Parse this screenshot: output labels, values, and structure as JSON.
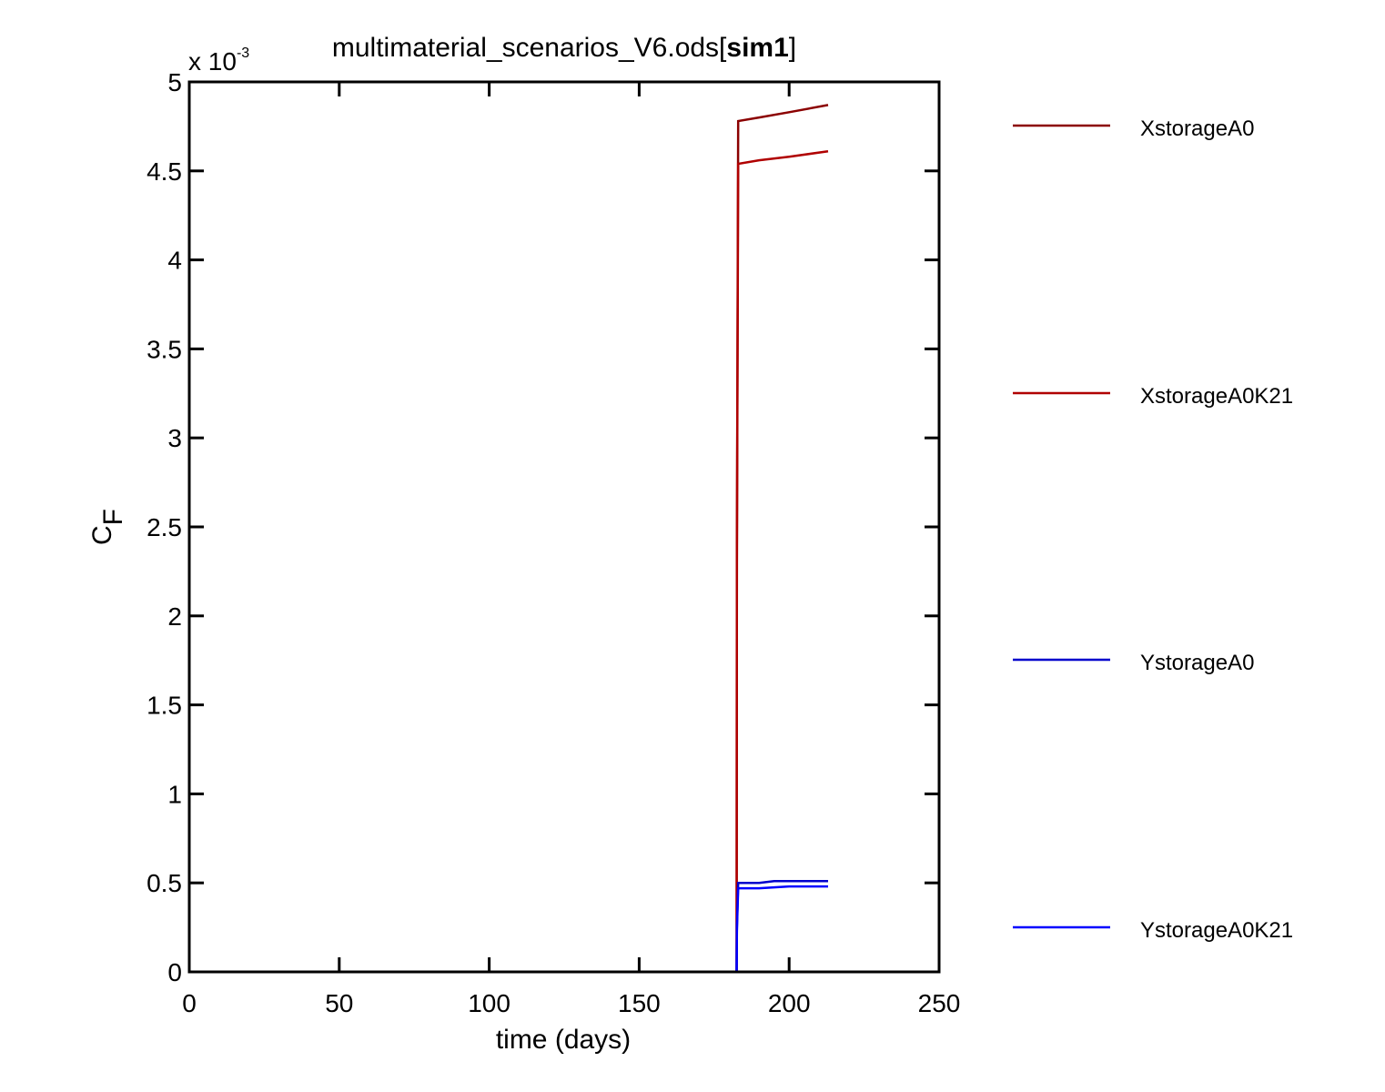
{
  "chart_data": {
    "type": "line",
    "title_main": "multimaterial_scenarios_V6.ods[",
    "title_bold": "sim1",
    "title_end": "]",
    "xlabel": "time (days)",
    "ylabel_main": "C",
    "ylabel_sub": "F",
    "y_exponent_prefix": "x 10",
    "y_exponent_power": "-3",
    "xlim": [
      0,
      250
    ],
    "ylim": [
      0,
      5
    ],
    "y_scale_factor": 0.001,
    "x_ticks": [
      0,
      50,
      100,
      150,
      200,
      250
    ],
    "x_tick_labels": [
      "0",
      "50",
      "100",
      "150",
      "200",
      "250"
    ],
    "y_ticks": [
      0,
      0.5,
      1,
      1.5,
      2,
      2.5,
      3,
      3.5,
      4,
      4.5,
      5
    ],
    "y_tick_labels": [
      "0",
      "0.5",
      "1",
      "1.5",
      "2",
      "2.5",
      "3",
      "3.5",
      "4",
      "4.5",
      "5"
    ],
    "grid": false,
    "legend_placement": "outside-right",
    "series": [
      {
        "name": "XstorageA0",
        "color": "#8b0000",
        "x": [
          0,
          182.5,
          182.6,
          183.0,
          190,
          200,
          213
        ],
        "y": [
          0,
          0,
          2.4,
          4.78,
          4.8,
          4.83,
          4.87
        ]
      },
      {
        "name": "XstorageA0K21",
        "color": "#b00000",
        "x": [
          0,
          182.5,
          182.6,
          183.0,
          190,
          200,
          213
        ],
        "y": [
          0,
          0,
          2.3,
          4.54,
          4.56,
          4.58,
          4.61
        ]
      },
      {
        "name": "YstorageA0",
        "color": "#0000cc",
        "x": [
          0,
          182.5,
          182.6,
          183.0,
          190,
          195,
          213
        ],
        "y": [
          0,
          0,
          0.25,
          0.5,
          0.5,
          0.51,
          0.51
        ]
      },
      {
        "name": "YstorageA0K21",
        "color": "#0000ff",
        "x": [
          0,
          182.5,
          182.6,
          183.0,
          190,
          200,
          213
        ],
        "y": [
          0,
          0,
          0.23,
          0.47,
          0.47,
          0.48,
          0.48
        ]
      }
    ]
  }
}
